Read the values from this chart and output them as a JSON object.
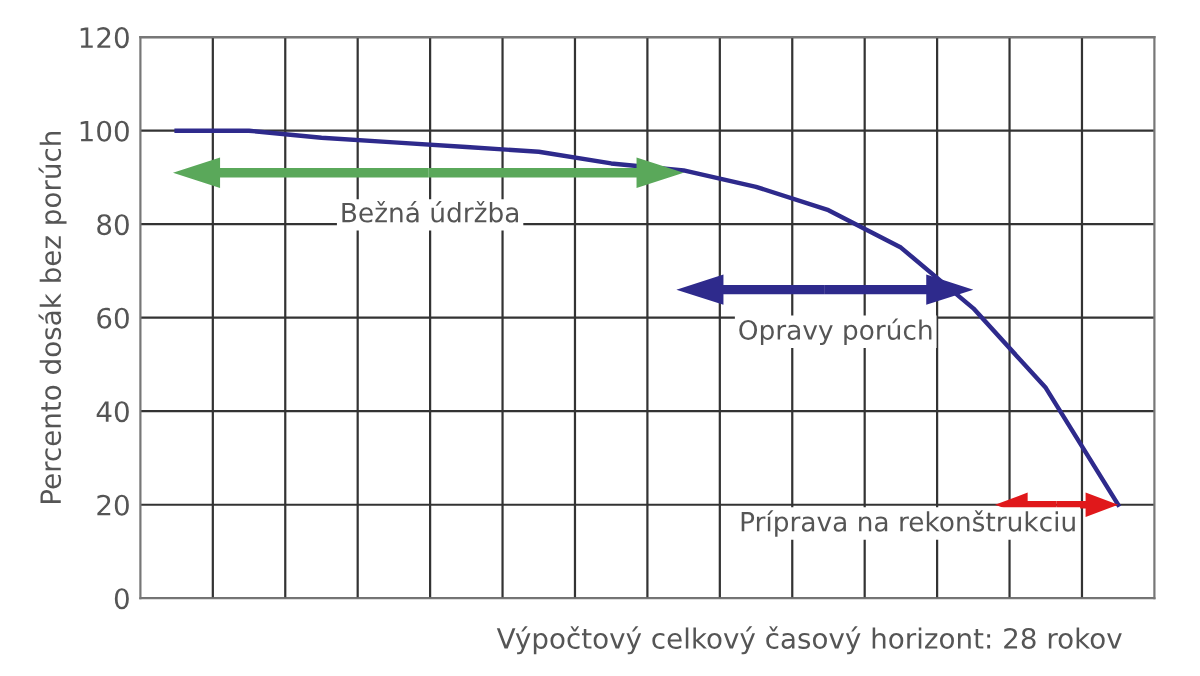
{
  "chart_data": {
    "type": "line",
    "categories": [
      null,
      null,
      null,
      null,
      null,
      null,
      null,
      null,
      null,
      null,
      null,
      null,
      null,
      null
    ],
    "series": [
      {
        "color": "#2e2a8c",
        "values": [
          100,
          100,
          98.5,
          97.5,
          96.5,
          95.5,
          93,
          91.5,
          88,
          83,
          75,
          62,
          45,
          20
        ]
      }
    ],
    "ylabel": "Percento dosák bez porúch",
    "xlabel": "Výpočtový celkový časový horizont: 28 rokov",
    "ylim": [
      0,
      120
    ],
    "yticks": [
      0,
      20,
      40,
      60,
      80,
      100,
      120
    ],
    "grid": true,
    "marker": "none",
    "line_style": "solid",
    "annotations": [
      "Bežná údržba",
      "Opravy porúch",
      "Príprava na rekonštrukciu"
    ]
  }
}
